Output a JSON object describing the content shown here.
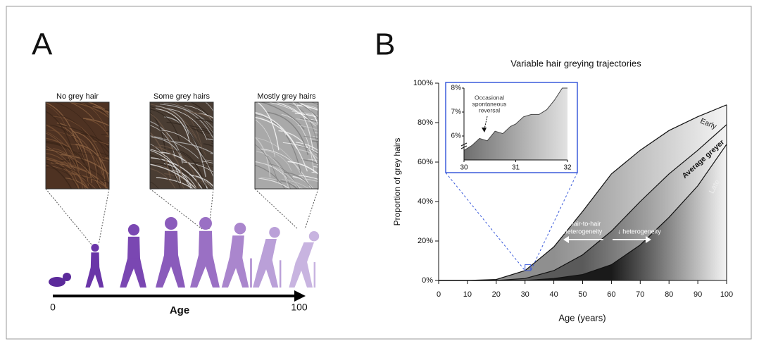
{
  "panel_a": {
    "label": "A",
    "images": [
      {
        "caption": "No grey hair"
      },
      {
        "caption": "Some grey hairs"
      },
      {
        "caption": "Mostly grey hairs"
      }
    ],
    "axis": {
      "start": "0",
      "label": "Age",
      "end": "100"
    }
  },
  "chart_data": [
    {
      "type": "area",
      "panel_label": "B",
      "title": "Variable hair greying trajectories",
      "x_label": "Age (years)",
      "y_label": "Proportion of grey hairs",
      "x": [
        0,
        10,
        20,
        30,
        40,
        50,
        60,
        70,
        80,
        90,
        100
      ],
      "series": [
        {
          "name": "Early",
          "color": "#8f8f8f",
          "values": [
            0,
            0,
            0.5,
            5,
            17,
            35,
            54,
            66,
            76,
            83,
            89
          ]
        },
        {
          "name": "Average greyer",
          "color": "#5a5a5a",
          "values": [
            0,
            0,
            0,
            1,
            5,
            13,
            25,
            40,
            54,
            66,
            79
          ]
        },
        {
          "name": "Late",
          "color": "#1a1a1a",
          "values": [
            0,
            0,
            0,
            0,
            1,
            3,
            8,
            18,
            32,
            48,
            69
          ]
        }
      ],
      "xlim": [
        0,
        100
      ],
      "ylim": [
        0,
        100
      ],
      "xticks": [
        0,
        10,
        20,
        30,
        40,
        50,
        60,
        70,
        80,
        90,
        100
      ],
      "yticks": [
        {
          "value": 0,
          "label": "0%"
        },
        {
          "value": 20,
          "label": "20%"
        },
        {
          "value": 40,
          "label": "40%"
        },
        {
          "value": 60,
          "label": "60%"
        },
        {
          "value": 80,
          "label": "80%"
        },
        {
          "value": 100,
          "label": "100%"
        }
      ],
      "annotations": [
        {
          "lines": [
            "↑ hair-to-hair",
            "heterogeneity"
          ]
        },
        {
          "lines": [
            "↓ heterogeneity"
          ]
        }
      ]
    },
    {
      "type": "area",
      "color": "#6e6e6e",
      "x": [
        30,
        30.15,
        30.3,
        30.45,
        30.6,
        30.75,
        30.9,
        31,
        31.15,
        31.3,
        31.45,
        31.6,
        31.75,
        31.9,
        32
      ],
      "values": [
        5.4,
        5.6,
        5.9,
        5.8,
        6.2,
        6.1,
        6.4,
        6.5,
        6.8,
        6.9,
        6.9,
        7.1,
        7.5,
        8.0,
        8.0
      ],
      "xlim": [
        30,
        32
      ],
      "ylim": [
        5,
        8
      ],
      "xticks": [
        30,
        31,
        32
      ],
      "yticks": [
        {
          "value": 6,
          "label": "6%"
        },
        {
          "value": 7,
          "label": "7%"
        },
        {
          "value": 8,
          "label": "8%"
        }
      ],
      "annotations": [
        {
          "lines": [
            "Occasional",
            "spontaneous",
            "reversal"
          ]
        }
      ]
    }
  ]
}
